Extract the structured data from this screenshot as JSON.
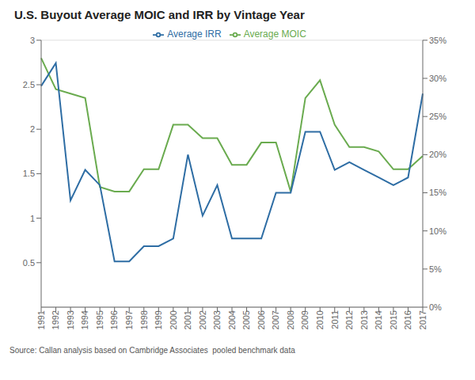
{
  "chart_data": {
    "type": "line",
    "title": "U.S. Buyout Average MOIC and IRR by Vintage Year",
    "annotations": [
      "Source: Callan analysis based on Cambridge Associates  pooled benchmark data"
    ],
    "categories": [
      "1991",
      "1992",
      "1993",
      "1994",
      "1995",
      "1996",
      "1997",
      "1998",
      "1999",
      "2000",
      "2001",
      "2002",
      "2003",
      "2004",
      "2005",
      "2006",
      "2007",
      "2008",
      "2009",
      "2010",
      "2011",
      "2012",
      "2013",
      "2014",
      "2015",
      "2016",
      "2017"
    ],
    "series": [
      {
        "name": "Average MOIC",
        "color": "#6aab4f",
        "values": [
          2.8,
          2.45,
          2.4,
          2.35,
          1.35,
          1.3,
          1.3,
          1.55,
          1.55,
          2.05,
          2.05,
          1.9,
          1.9,
          1.6,
          1.6,
          1.85,
          1.85,
          1.3,
          2.35,
          2.55,
          2.05,
          1.8,
          1.8,
          1.75,
          1.55,
          1.55,
          1.7
        ]
      },
      {
        "name": "Average IRR",
        "color": "#2e6da4",
        "axis": "y2",
        "values": [
          0.29,
          0.32,
          0.14,
          0.18,
          0.16,
          0.06,
          0.06,
          0.08,
          0.08,
          0.09,
          0.2,
          0.12,
          0.16,
          0.09,
          0.09,
          0.09,
          0.15,
          0.15,
          0.23,
          0.23,
          0.18,
          0.19,
          0.18,
          0.17,
          0.16,
          0.17,
          0.28
        ]
      }
    ],
    "ylim": [
      0,
      3
    ],
    "yticks": [
      0.5,
      1,
      1.5,
      2,
      2.5,
      3
    ],
    "y2lim": [
      0,
      0.35
    ],
    "y2ticks": [
      {
        "value": 0,
        "label": "0%"
      },
      {
        "value": 0.05,
        "label": "5%"
      },
      {
        "value": 0.1,
        "label": "10%"
      },
      {
        "value": 0.15,
        "label": "15%"
      },
      {
        "value": 0.2,
        "label": "20%"
      },
      {
        "value": 0.25,
        "label": "25%"
      },
      {
        "value": 0.3,
        "label": "30%"
      },
      {
        "value": 0.35,
        "label": "35%"
      }
    ],
    "grid": true,
    "legend": "top"
  }
}
